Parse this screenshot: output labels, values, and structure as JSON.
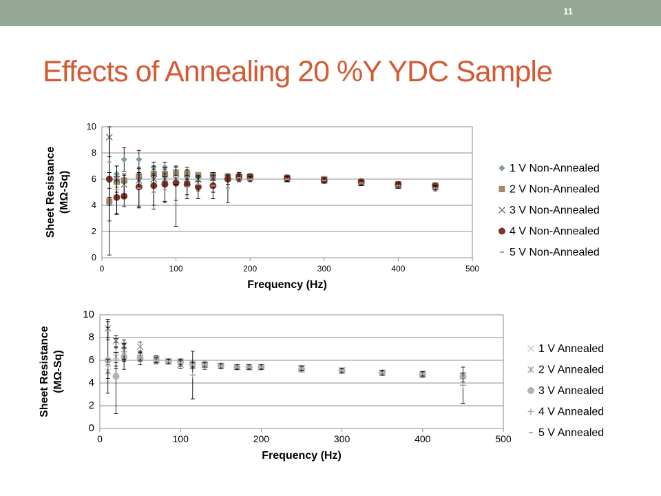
{
  "slide": {
    "number": "11",
    "title": "Effects of Annealing 20 %Y YDC Sample"
  },
  "colors": {
    "topbar": "#94a895",
    "title": "#d35a34"
  },
  "chart_data": [
    {
      "type": "scatter",
      "xlabel": "Frequency (Hz)",
      "ylabel_lines": [
        "Sheet Resistance",
        "(MΩ-Sq)"
      ],
      "xlim": [
        0,
        500
      ],
      "ylim": [
        0,
        10
      ],
      "xticks": [
        0,
        100,
        200,
        300,
        400,
        500
      ],
      "yticks": [
        0,
        2,
        4,
        6,
        8,
        10
      ],
      "grid": "horizontal",
      "legend_position": "right",
      "series": [
        {
          "name": "1 V Non-Annealed",
          "marker": "diamond",
          "color": "#7f9a9a",
          "x": [
            10,
            20,
            30,
            50,
            70,
            85,
            100,
            115,
            130,
            150,
            170,
            185,
            200,
            250,
            300,
            350,
            400,
            450
          ],
          "y": [
            5.9,
            6.4,
            7.5,
            7.5,
            6.9,
            6.9,
            6.6,
            6.6,
            6.3,
            6.3,
            6.2,
            6.2,
            6.1,
            6.0,
            5.9,
            5.8,
            5.6,
            5.4
          ],
          "err": [
            0.6,
            0.6,
            0.9,
            0.7,
            0.4,
            0.4,
            0.3,
            0.3,
            0.2,
            0.2,
            0.2,
            0.2,
            0.2,
            0.2,
            0.2,
            0.2,
            0.2,
            0.2
          ]
        },
        {
          "name": "2 V Non-Annealed",
          "marker": "square",
          "color": "#a4896e",
          "x": [
            10,
            20,
            30,
            50,
            70,
            85,
            100,
            115,
            130,
            150,
            170,
            185,
            200,
            250,
            300,
            350,
            400,
            450
          ],
          "y": [
            4.3,
            5.8,
            5.9,
            6.2,
            6.4,
            6.4,
            6.5,
            6.4,
            6.3,
            6.3,
            6.2,
            6.2,
            6.2,
            6.1,
            6.0,
            5.8,
            5.6,
            5.5
          ],
          "err": [
            0.3,
            0.4,
            0.4,
            0.3,
            0.3,
            0.3,
            0.2,
            0.2,
            0.2,
            0.2,
            0.2,
            0.2,
            0.2,
            0.2,
            0.2,
            0.2,
            0.2,
            0.2
          ]
        },
        {
          "name": "3 V Non-Annealed",
          "marker": "x",
          "color": "#5d6b77",
          "x": [
            10,
            20,
            30,
            50,
            70,
            85,
            100,
            115,
            130,
            150,
            170,
            185,
            200,
            250,
            300,
            350,
            400,
            450
          ],
          "y": [
            9.2,
            6.0,
            5.6,
            5.9,
            6.0,
            6.0,
            6.0,
            6.0,
            6.0,
            6.1,
            6.1,
            6.1,
            6.1,
            6.0,
            5.9,
            5.7,
            5.5,
            5.4
          ],
          "err": [
            1.5,
            1.0,
            0.8,
            0.5,
            0.4,
            0.4,
            0.3,
            0.3,
            0.2,
            0.2,
            0.2,
            0.2,
            0.2,
            0.2,
            0.2,
            0.2,
            0.2,
            0.2
          ]
        },
        {
          "name": "4 V Non-Annealed",
          "marker": "circle",
          "color": "#7b3428",
          "x": [
            10,
            20,
            30,
            50,
            70,
            85,
            100,
            115,
            130,
            150,
            170,
            185,
            200,
            250,
            300,
            350,
            400,
            450
          ],
          "y": [
            6.0,
            4.6,
            4.7,
            5.4,
            5.5,
            5.6,
            5.7,
            5.6,
            5.4,
            5.5,
            6.0,
            6.2,
            6.2,
            6.1,
            5.9,
            5.8,
            5.6,
            5.5
          ],
          "err": [
            5.8,
            1.3,
            0.8,
            1.5,
            1.5,
            1.3,
            1.3,
            1.1,
            0.9,
            1.0,
            0.4,
            0.3,
            0.2,
            0.2,
            0.2,
            0.2,
            0.2,
            0.2
          ]
        },
        {
          "name": "5 V Non-Annealed",
          "marker": "dash",
          "color": "#b79a8a",
          "x": [
            10,
            20,
            30,
            50,
            70,
            85,
            100,
            115,
            130,
            150,
            170,
            185,
            200,
            250,
            300,
            350,
            400,
            450
          ],
          "y": [
            7.3,
            5.2,
            5.5,
            5.3,
            5.0,
            5.2,
            4.0,
            5.4,
            5.6,
            5.5,
            5.3,
            6.1,
            6.0,
            6.0,
            5.9,
            5.7,
            5.5,
            5.3
          ],
          "err": [
            4.5,
            1.8,
            0.9,
            1.5,
            1.3,
            1.0,
            1.6,
            0.6,
            0.5,
            0.5,
            1.1,
            0.3,
            0.2,
            0.2,
            0.2,
            0.2,
            0.2,
            0.2
          ]
        }
      ]
    },
    {
      "type": "scatter",
      "xlabel": "Frequency (Hz)",
      "ylabel_lines": [
        "Sheet Resistance",
        "(MΩ-Sq)"
      ],
      "xlim": [
        0,
        500
      ],
      "ylim": [
        0,
        10
      ],
      "xticks": [
        0,
        100,
        200,
        300,
        400,
        500
      ],
      "yticks": [
        0,
        2,
        4,
        6,
        8,
        10
      ],
      "grid": "horizontal",
      "legend_position": "right",
      "series": [
        {
          "name": "1 V Annealed",
          "marker": "x",
          "color": "#c6c6c6",
          "x": [
            10,
            20,
            30,
            50,
            70,
            85,
            100,
            115,
            130,
            150,
            170,
            185,
            200,
            250,
            300,
            350,
            400,
            450
          ],
          "y": [
            5.0,
            6.3,
            6.5,
            6.3,
            6.0,
            5.9,
            5.9,
            5.7,
            5.6,
            5.5,
            5.4,
            5.4,
            5.4,
            5.2,
            5.1,
            4.9,
            4.7,
            4.6
          ],
          "err": [
            0.6,
            0.8,
            0.6,
            0.4,
            0.3,
            0.2,
            0.2,
            0.2,
            0.2,
            0.2,
            0.2,
            0.2,
            0.2,
            0.2,
            0.2,
            0.2,
            0.2,
            0.2
          ]
        },
        {
          "name": "2 V Annealed",
          "marker": "star",
          "color": "#9a9a9a",
          "x": [
            10,
            20,
            30,
            50,
            70,
            85,
            100,
            115,
            130,
            150,
            170,
            185,
            200,
            250,
            300,
            350,
            400,
            450
          ],
          "y": [
            8.8,
            7.7,
            7.3,
            7.2,
            6.1,
            5.9,
            5.6,
            5.5,
            5.6,
            5.5,
            5.4,
            5.4,
            5.4,
            5.3,
            5.1,
            4.9,
            4.8,
            4.6
          ],
          "err": [
            0.8,
            0.5,
            0.5,
            0.4,
            0.3,
            0.2,
            0.3,
            0.2,
            0.2,
            0.2,
            0.2,
            0.2,
            0.2,
            0.2,
            0.2,
            0.2,
            0.2,
            0.2
          ]
        },
        {
          "name": "3 V Annealed",
          "marker": "circle",
          "color": "#b3b3b3",
          "x": [
            10,
            20,
            30,
            50,
            70,
            85,
            100,
            115,
            130,
            150,
            170,
            185,
            200,
            250,
            300,
            350,
            400,
            450
          ],
          "y": [
            6.0,
            4.6,
            6.3,
            6.2,
            6.0,
            5.9,
            5.9,
            5.7,
            5.7,
            5.5,
            5.4,
            5.4,
            5.4,
            5.2,
            5.1,
            4.9,
            4.8,
            4.6
          ],
          "err": [
            2.9,
            3.3,
            1.1,
            0.6,
            0.3,
            0.2,
            0.2,
            0.2,
            0.2,
            0.2,
            0.2,
            0.2,
            0.2,
            0.2,
            0.2,
            0.2,
            0.2,
            0.2
          ]
        },
        {
          "name": "4 V Annealed",
          "marker": "plus",
          "color": "#a0a0a0",
          "x": [
            10,
            20,
            30,
            50,
            70,
            85,
            100,
            115,
            130,
            150,
            170,
            185,
            200,
            250,
            300,
            350,
            400,
            450
          ],
          "y": [
            5.5,
            6.7,
            6.8,
            6.4,
            6.1,
            5.9,
            5.8,
            4.7,
            5.5,
            5.5,
            5.4,
            5.4,
            5.4,
            5.3,
            5.1,
            4.9,
            4.8,
            3.8
          ],
          "err": [
            0.6,
            0.9,
            0.7,
            0.4,
            0.3,
            0.2,
            0.3,
            2.1,
            0.3,
            0.2,
            0.2,
            0.2,
            0.2,
            0.2,
            0.2,
            0.2,
            0.2,
            1.6
          ]
        },
        {
          "name": "5 V Annealed",
          "marker": "dash",
          "color": "#b0b0b0",
          "x": [
            10,
            20,
            30,
            50,
            70,
            85,
            100,
            115,
            130,
            150,
            170,
            185,
            200,
            250,
            300,
            350,
            400,
            450
          ],
          "y": [
            8.6,
            6.0,
            6.5,
            6.3,
            6.0,
            5.9,
            5.8,
            5.6,
            5.6,
            5.5,
            5.4,
            5.4,
            5.4,
            5.3,
            5.1,
            4.9,
            4.8,
            4.5
          ],
          "err": [
            0.8,
            0.7,
            0.5,
            0.3,
            0.2,
            0.2,
            0.2,
            0.2,
            0.2,
            0.2,
            0.2,
            0.2,
            0.2,
            0.2,
            0.2,
            0.2,
            0.2,
            0.4
          ]
        }
      ]
    }
  ]
}
